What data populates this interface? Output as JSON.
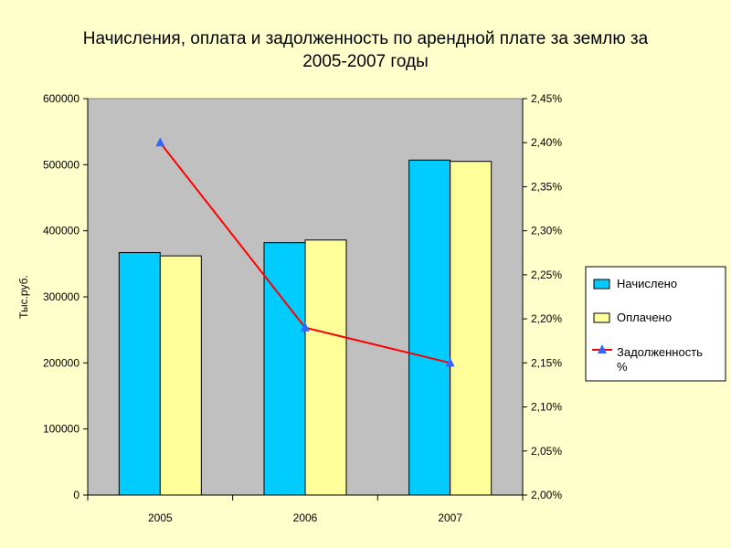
{
  "chart_data": {
    "type": "bar",
    "title_line1": "Начисления, оплата и задолженность по арендной плате за землю за",
    "title_line2": "2005-2007 годы",
    "categories": [
      "2005",
      "2006",
      "2007"
    ],
    "ylabel": "Тыс.руб.",
    "ylim": [
      0,
      600000
    ],
    "yticks": [
      "0",
      "100000",
      "200000",
      "300000",
      "400000",
      "500000",
      "600000"
    ],
    "y2lim": [
      2.0,
      2.45
    ],
    "y2ticks": [
      "2,00%",
      "2,05%",
      "2,10%",
      "2,15%",
      "2,20%",
      "2,25%",
      "2,30%",
      "2,35%",
      "2,40%",
      "2,45%"
    ],
    "grid": false,
    "plot_background": "#C0C0C0",
    "legend_position": "right",
    "series": [
      {
        "name": "Начислено",
        "type": "bar",
        "axis": "left",
        "color": "#00CCFF",
        "values": [
          367000,
          382000,
          507000
        ]
      },
      {
        "name": "Оплачено",
        "type": "bar",
        "axis": "left",
        "color": "#FFFF99",
        "values": [
          362000,
          386000,
          505000
        ]
      },
      {
        "name_line1": "Задолженность",
        "name_line2": "%",
        "type": "line",
        "axis": "right",
        "color": "#FF0000",
        "marker_color": "#3366FF",
        "values": [
          2.4,
          2.19,
          2.15
        ]
      }
    ]
  }
}
